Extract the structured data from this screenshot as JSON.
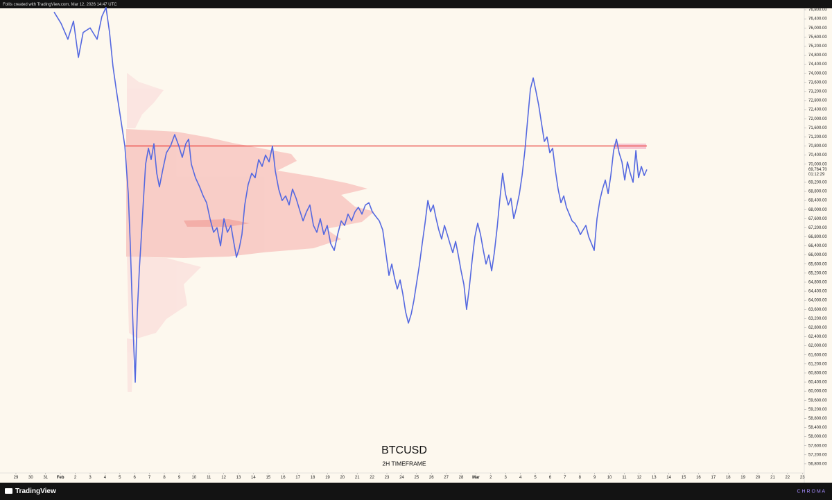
{
  "header": {
    "credit": "Follis created with TradingView.com, Mar 12, 2026 14:47 UTC"
  },
  "footer": {
    "brand": "TradingView",
    "watermark": "C H R O M A"
  },
  "chart_data": {
    "type": "line",
    "title": "BTCUSD",
    "subtitle": "2H TIMEFRAME",
    "color": "#5468e0",
    "xlim": [
      -0.7,
      53.1
    ],
    "ylim": [
      56400,
      77000
    ],
    "x": [
      2.57,
      3.04,
      3.5,
      3.88,
      4.21,
      4.53,
      5.0,
      5.47,
      5.79,
      6.07,
      6.31,
      6.54,
      6.78,
      7.06,
      7.34,
      7.57,
      7.71,
      7.85,
      7.94,
      8.04,
      8.18,
      8.32,
      8.46,
      8.6,
      8.74,
      8.93,
      9.11,
      9.3,
      9.49,
      9.67,
      9.91,
      10.14,
      10.42,
      10.7,
      10.98,
      11.21,
      11.45,
      11.64,
      11.82,
      12.1,
      12.38,
      12.62,
      12.85,
      13.08,
      13.32,
      13.55,
      13.79,
      14.02,
      14.25,
      14.49,
      14.67,
      14.86,
      15.05,
      15.23,
      15.42,
      15.65,
      15.89,
      16.12,
      16.36,
      16.59,
      16.82,
      17.06,
      17.29,
      17.48,
      17.71,
      17.94,
      18.18,
      18.41,
      18.64,
      18.88,
      19.11,
      19.35,
      19.58,
      19.81,
      20.05,
      20.28,
      20.51,
      20.75,
      20.98,
      21.21,
      21.45,
      21.68,
      21.92,
      22.15,
      22.38,
      22.62,
      22.85,
      23.08,
      23.32,
      23.55,
      23.79,
      24.02,
      24.25,
      24.49,
      24.72,
      24.95,
      25.14,
      25.33,
      25.51,
      25.7,
      25.89,
      26.07,
      26.26,
      26.45,
      26.64,
      26.82,
      27.01,
      27.2,
      27.38,
      27.57,
      27.76,
      27.94,
      28.13,
      28.32,
      28.5,
      28.69,
      28.88,
      29.07,
      29.25,
      29.44,
      29.63,
      29.81,
      30.0,
      30.19,
      30.37,
      30.56,
      30.75,
      30.93,
      31.12,
      31.31,
      31.5,
      31.68,
      31.87,
      32.06,
      32.24,
      32.43,
      32.62,
      32.8,
      32.99,
      33.18,
      33.36,
      33.55,
      33.74,
      33.93,
      34.11,
      34.3,
      34.49,
      34.67,
      34.86,
      35.05,
      35.23,
      35.42,
      35.61,
      35.79,
      35.98,
      36.17,
      36.36,
      36.54,
      36.73,
      36.92,
      37.1,
      37.29,
      37.48,
      37.66,
      37.85,
      38.04,
      38.22,
      38.41,
      38.6,
      38.79,
      38.97,
      39.16,
      39.35,
      39.53,
      39.72,
      39.91,
      40.09,
      40.28,
      40.47,
      40.65,
      40.84,
      41.03,
      41.21,
      41.4,
      41.59,
      41.78,
      41.96,
      42.15,
      42.34,
      42.52
    ],
    "values": [
      76700,
      76200,
      75500,
      76300,
      74700,
      75800,
      76000,
      75500,
      76500,
      76900,
      75800,
      74300,
      73200,
      72000,
      70800,
      68700,
      66400,
      63600,
      62000,
      60400,
      63500,
      65400,
      66900,
      68500,
      70000,
      70700,
      70200,
      70900,
      69600,
      69000,
      69800,
      70500,
      70800,
      71300,
      70800,
      70300,
      70900,
      71100,
      70000,
      69400,
      69000,
      68600,
      68300,
      67600,
      67000,
      67200,
      66400,
      67600,
      67000,
      67300,
      66600,
      65900,
      66300,
      66900,
      68200,
      69100,
      69600,
      69400,
      70200,
      69900,
      70400,
      70100,
      70800,
      69700,
      68900,
      68400,
      68600,
      68200,
      68900,
      68500,
      68000,
      67500,
      67900,
      68200,
      67300,
      67000,
      67600,
      66900,
      67300,
      66500,
      66200,
      66900,
      67500,
      67300,
      67800,
      67500,
      67900,
      68100,
      67800,
      68200,
      68300,
      67900,
      67700,
      67500,
      67100,
      66000,
      65100,
      65600,
      65000,
      64500,
      64900,
      64300,
      63500,
      63000,
      63400,
      64000,
      64800,
      65600,
      66500,
      67400,
      68400,
      67900,
      68200,
      67600,
      67100,
      66700,
      67300,
      66900,
      66500,
      66100,
      66600,
      66000,
      65300,
      64700,
      63600,
      64600,
      65800,
      66800,
      67400,
      66900,
      66200,
      65600,
      66000,
      65300,
      66100,
      67200,
      68500,
      69600,
      68700,
      68200,
      68500,
      67600,
      68100,
      68700,
      69500,
      70600,
      72000,
      73300,
      73800,
      73200,
      72600,
      71800,
      71000,
      71200,
      70500,
      70700,
      69700,
      68900,
      68300,
      68600,
      68100,
      67800,
      67500,
      67400,
      67200,
      66900,
      67100,
      67300,
      66800,
      66500,
      66200,
      67600,
      68400,
      68900,
      69300,
      68700,
      69500,
      70600,
      71100,
      70500,
      70100,
      69300,
      70100,
      69600,
      69200,
      70600,
      69400,
      69900,
      69500,
      69764.7
    ],
    "hline": {
      "value": 70800,
      "x_range": [
        7.34,
        42.52
      ],
      "color": "#e8332f"
    },
    "last_price": {
      "value": 69764.7,
      "label": "69,764.70"
    },
    "countdown": "01:12:29",
    "yticks": [
      {
        "value": 56800,
        "label": "56,800.00"
      },
      {
        "value": 57200,
        "label": "57,200.00"
      },
      {
        "value": 57600,
        "label": "57,600.00"
      },
      {
        "value": 58000,
        "label": "58,000.00"
      },
      {
        "value": 58400,
        "label": "58,400.00"
      },
      {
        "value": 58800,
        "label": "58,800.00"
      },
      {
        "value": 59200,
        "label": "59,200.00"
      },
      {
        "value": 59600,
        "label": "59,600.00"
      },
      {
        "value": 60000,
        "label": "60,000.00"
      },
      {
        "value": 60400,
        "label": "60,400.00"
      },
      {
        "value": 60800,
        "label": "60,800.00"
      },
      {
        "value": 61200,
        "label": "61,200.00"
      },
      {
        "value": 61600,
        "label": "61,600.00"
      },
      {
        "value": 62000,
        "label": "62,000.00"
      },
      {
        "value": 62400,
        "label": "62,400.00"
      },
      {
        "value": 62800,
        "label": "62,800.00"
      },
      {
        "value": 63200,
        "label": "63,200.00"
      },
      {
        "value": 63600,
        "label": "63,600.00"
      },
      {
        "value": 64000,
        "label": "64,000.00"
      },
      {
        "value": 64400,
        "label": "64,400.00"
      },
      {
        "value": 64800,
        "label": "64,800.00"
      },
      {
        "value": 65200,
        "label": "65,200.00"
      },
      {
        "value": 65600,
        "label": "65,600.00"
      },
      {
        "value": 66000,
        "label": "66,000.00"
      },
      {
        "value": 66400,
        "label": "66,400.00"
      },
      {
        "value": 66800,
        "label": "66,800.00"
      },
      {
        "value": 67200,
        "label": "67,200.00"
      },
      {
        "value": 67600,
        "label": "67,600.00"
      },
      {
        "value": 68000,
        "label": "68,000.00"
      },
      {
        "value": 68400,
        "label": "68,400.00"
      },
      {
        "value": 68800,
        "label": "68,800.00"
      },
      {
        "value": 69200,
        "label": "69,200.00"
      },
      {
        "value": 70000,
        "label": "70,000.00"
      },
      {
        "value": 70400,
        "label": "70,400.00"
      },
      {
        "value": 70800,
        "label": "70,800.00"
      },
      {
        "value": 71200,
        "label": "71,200.00"
      },
      {
        "value": 71600,
        "label": "71,600.00"
      },
      {
        "value": 72000,
        "label": "72,000.00"
      },
      {
        "value": 72400,
        "label": "72,400.00"
      },
      {
        "value": 72800,
        "label": "72,800.00"
      },
      {
        "value": 73200,
        "label": "73,200.00"
      },
      {
        "value": 73600,
        "label": "73,600.00"
      },
      {
        "value": 74000,
        "label": "74,000.00"
      },
      {
        "value": 74400,
        "label": "74,400.00"
      },
      {
        "value": 74800,
        "label": "74,800.00"
      },
      {
        "value": 75200,
        "label": "75,200.00"
      },
      {
        "value": 75600,
        "label": "75,600.00"
      },
      {
        "value": 76000,
        "label": "76,000.00"
      },
      {
        "value": 76400,
        "label": "76,400.00"
      },
      {
        "value": 76800,
        "label": "76,800.00"
      }
    ],
    "xticks": [
      {
        "value": 0,
        "label": "29"
      },
      {
        "value": 1,
        "label": "30"
      },
      {
        "value": 2,
        "label": "31"
      },
      {
        "value": 3,
        "label": "Feb"
      },
      {
        "value": 4,
        "label": "2"
      },
      {
        "value": 5,
        "label": "3"
      },
      {
        "value": 6,
        "label": "4"
      },
      {
        "value": 7,
        "label": "5"
      },
      {
        "value": 8,
        "label": "6"
      },
      {
        "value": 9,
        "label": "7"
      },
      {
        "value": 10,
        "label": "8"
      },
      {
        "value": 11,
        "label": "9"
      },
      {
        "value": 12,
        "label": "10"
      },
      {
        "value": 13,
        "label": "11"
      },
      {
        "value": 14,
        "label": "12"
      },
      {
        "value": 15,
        "label": "13"
      },
      {
        "value": 16,
        "label": "14"
      },
      {
        "value": 17,
        "label": "15"
      },
      {
        "value": 18,
        "label": "16"
      },
      {
        "value": 19,
        "label": "17"
      },
      {
        "value": 20,
        "label": "18"
      },
      {
        "value": 21,
        "label": "19"
      },
      {
        "value": 22,
        "label": "20"
      },
      {
        "value": 23,
        "label": "21"
      },
      {
        "value": 24,
        "label": "22"
      },
      {
        "value": 25,
        "label": "23"
      },
      {
        "value": 26,
        "label": "24"
      },
      {
        "value": 27,
        "label": "25"
      },
      {
        "value": 28,
        "label": "26"
      },
      {
        "value": 29,
        "label": "27"
      },
      {
        "value": 30,
        "label": "28"
      },
      {
        "value": 31,
        "label": "Mar"
      },
      {
        "value": 32,
        "label": "2"
      },
      {
        "value": 33,
        "label": "3"
      },
      {
        "value": 34,
        "label": "4"
      },
      {
        "value": 35,
        "label": "5"
      },
      {
        "value": 36,
        "label": "6"
      },
      {
        "value": 37,
        "label": "7"
      },
      {
        "value": 38,
        "label": "8"
      },
      {
        "value": 39,
        "label": "9"
      },
      {
        "value": 40,
        "label": "10"
      },
      {
        "value": 41,
        "label": "11"
      },
      {
        "value": 42,
        "label": "12"
      },
      {
        "value": 43,
        "label": "13"
      },
      {
        "value": 44,
        "label": "14"
      },
      {
        "value": 45,
        "label": "15"
      },
      {
        "value": 46,
        "label": "16"
      },
      {
        "value": 47,
        "label": "17"
      },
      {
        "value": 48,
        "label": "18"
      },
      {
        "value": 49,
        "label": "19"
      },
      {
        "value": 50,
        "label": "20"
      },
      {
        "value": 51,
        "label": "21"
      },
      {
        "value": 52,
        "label": "22"
      },
      {
        "value": 53,
        "label": "23"
      }
    ]
  }
}
